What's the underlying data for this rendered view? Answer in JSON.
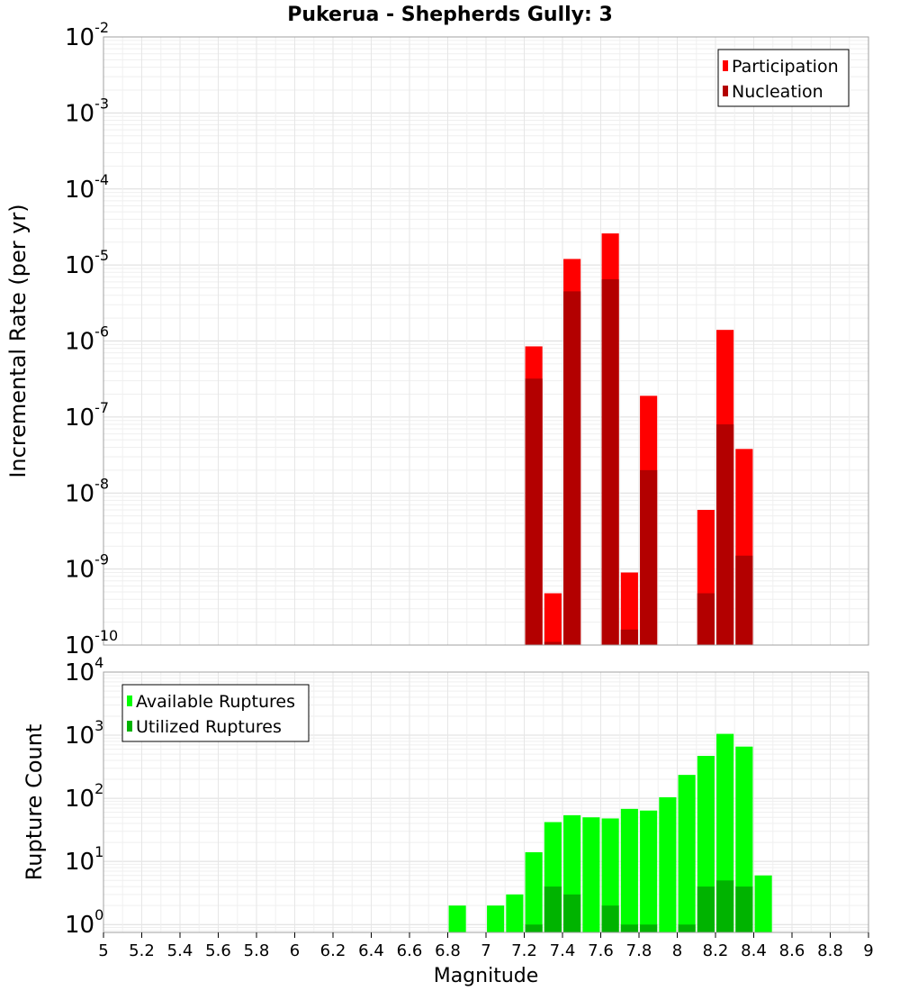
{
  "title": "Pukerua - Shepherds Gully: 3",
  "x_axis": {
    "label": "Magnitude",
    "min": 5,
    "max": 9,
    "tick_labels": [
      "5",
      "5.2",
      "5.4",
      "5.6",
      "5.8",
      "6",
      "6.2",
      "6.4",
      "6.6",
      "6.8",
      "7",
      "7.2",
      "7.4",
      "7.6",
      "7.8",
      "8",
      "8.2",
      "8.4",
      "8.6",
      "8.8",
      "9"
    ]
  },
  "chart_data": [
    {
      "type": "bar",
      "scale": "log",
      "ylabel": "Incremental Rate (per yr)",
      "ylim": [
        1e-10,
        0.01
      ],
      "y_tick_exponents": [
        "-10",
        "-9",
        "-8",
        "-7",
        "-6",
        "-5",
        "-4",
        "-3",
        "-2"
      ],
      "grid": true,
      "legend_position": "top-right",
      "x": [
        7.25,
        7.35,
        7.45,
        7.65,
        7.75,
        7.85,
        8.15,
        8.25,
        8.35
      ],
      "series": [
        {
          "name": "Participation",
          "color": "#ff0000",
          "values": [
            8.5e-07,
            4.8e-10,
            1.2e-05,
            2.6e-05,
            9e-10,
            1.9e-07,
            6e-09,
            1.4e-06,
            3.8e-08
          ]
        },
        {
          "name": "Nucleation",
          "color": "#b30000",
          "values": [
            3.2e-07,
            1.1e-10,
            4.5e-06,
            6.5e-06,
            1.6e-10,
            2e-08,
            4.8e-10,
            8e-08,
            1.5e-09
          ]
        }
      ]
    },
    {
      "type": "bar",
      "scale": "log",
      "ylabel": "Rupture Count",
      "ylim": [
        0.75,
        10000
      ],
      "y_tick_exponents": [
        "0",
        "1",
        "2",
        "3",
        "4"
      ],
      "grid": true,
      "legend_position": "top-left",
      "x": [
        6.85,
        7.05,
        7.15,
        7.25,
        7.35,
        7.45,
        7.55,
        7.65,
        7.75,
        7.85,
        7.95,
        8.05,
        8.15,
        8.25,
        8.35,
        8.45
      ],
      "series": [
        {
          "name": "Available Ruptures",
          "color": "#00ff00",
          "values": [
            2,
            2,
            3,
            14,
            42,
            54,
            50,
            48,
            68,
            64,
            104,
            235,
            470,
            1050,
            660,
            6
          ]
        },
        {
          "name": "Utilized Ruptures",
          "color": "#00b300",
          "values": [
            0,
            0,
            0,
            1,
            4,
            3,
            0,
            2,
            1,
            1,
            0,
            1,
            4,
            5,
            4,
            0
          ]
        }
      ]
    }
  ]
}
